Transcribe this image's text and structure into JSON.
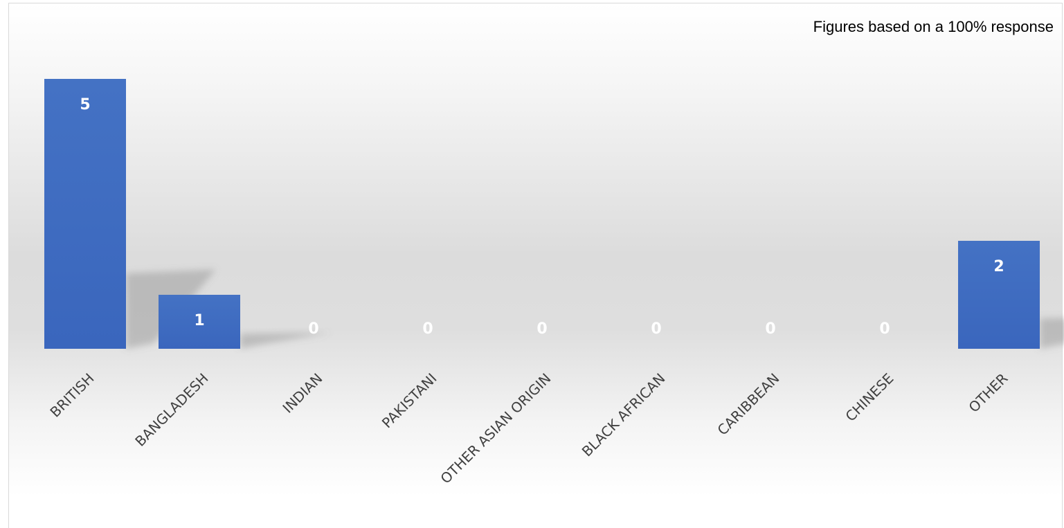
{
  "chart_data": {
    "type": "bar",
    "categories": [
      "BRITISH",
      "BANGLADESH",
      "INDIAN",
      "PAKISTANI",
      "OTHER ASIAN ORIGIN",
      "BLACK AFRICAN",
      "CARIBBEAN",
      "CHINESE",
      "OTHER"
    ],
    "values": [
      5,
      1,
      0,
      0,
      0,
      0,
      0,
      0,
      2
    ],
    "data_labels": [
      "5",
      "1",
      "0",
      "0",
      "0",
      "0",
      "0",
      "0",
      "2"
    ],
    "annotation": "Figures based on a 100% response",
    "ylim": [
      0,
      5
    ],
    "grid": false,
    "legend": "none",
    "bar_color": "#3a66bd",
    "bar_color_light": "#4472c4",
    "label_color": "#ffffff",
    "tick_label_color": "#404040",
    "annotation_placement": "top-right"
  }
}
